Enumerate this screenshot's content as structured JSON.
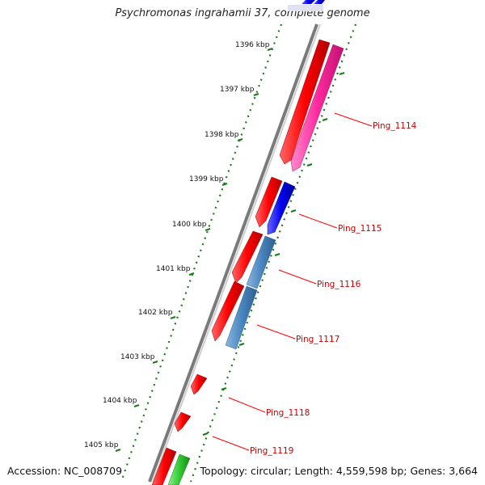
{
  "title": "Psychromonas ingrahamii 37, complete genome",
  "accession": {
    "label": "Accession:",
    "value": "NC_008709"
  },
  "summary": {
    "topology_label": "Topology:",
    "topology": "circular",
    "length_label": "Length:",
    "length": "4,559,598 bp",
    "genes_label": "Genes:",
    "genes": "3,664"
  },
  "scale": {
    "unit": "kbp",
    "ticks": [
      "1396 kbp",
      "1397 kbp",
      "1398 kbp",
      "1399 kbp",
      "1400 kbp",
      "1401 kbp",
      "1402 kbp",
      "1403 kbp",
      "1404 kbp",
      "1405 kbp"
    ]
  },
  "genes": [
    {
      "name": "Ping_1114"
    },
    {
      "name": "Ping_1115"
    },
    {
      "name": "Ping_1116"
    },
    {
      "name": "Ping_1117"
    },
    {
      "name": "Ping_1118"
    },
    {
      "name": "Ping_1119"
    }
  ],
  "colors": {
    "forward_strand": "#ff0000",
    "pink_feature": "#ff33aa",
    "blue_feature": "#0000ee",
    "steelblue_feature": "#4a86c0",
    "green_feature": "#33cc33",
    "backbone": "#888888",
    "tick_mark": "#1a7a1a",
    "label_line": "#ff0000"
  }
}
